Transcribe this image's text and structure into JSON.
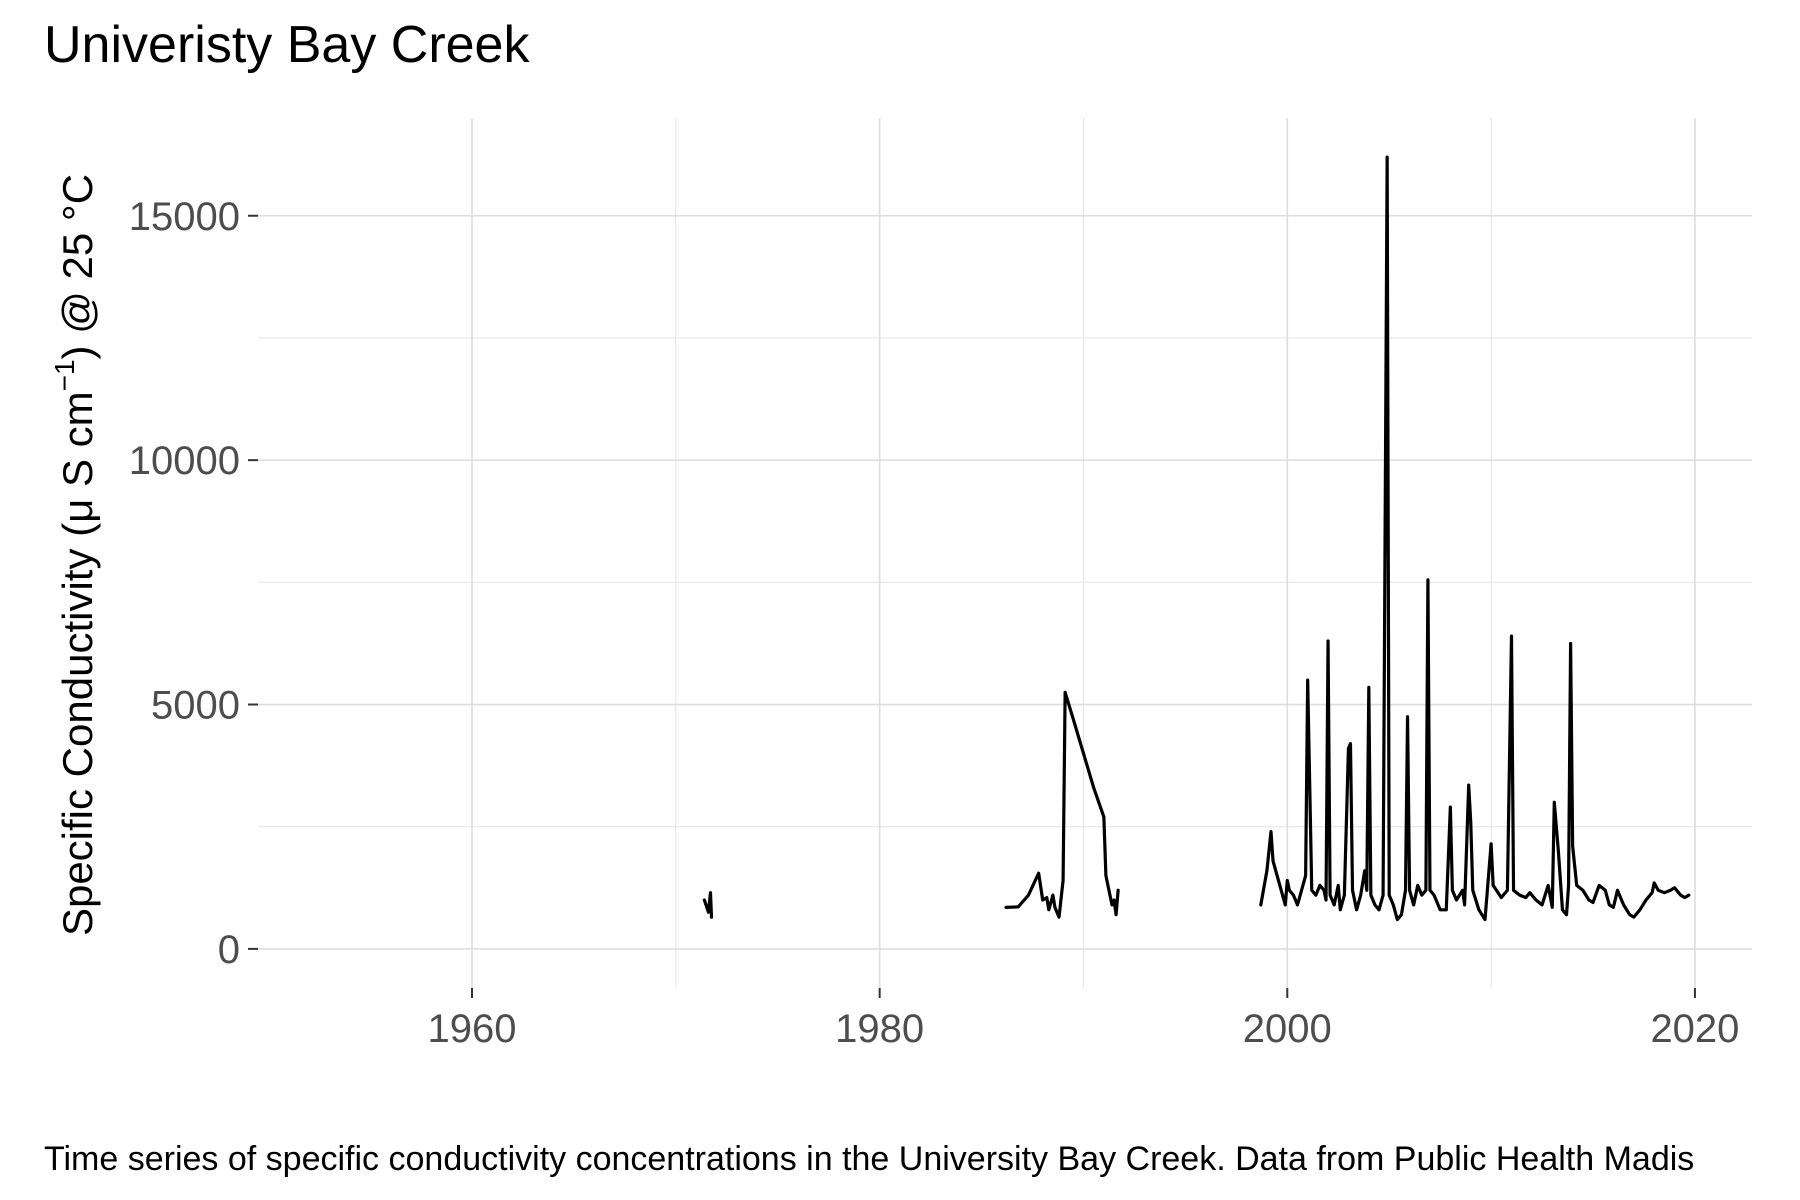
{
  "chart_data": {
    "type": "line",
    "title": "Univeristy Bay Creek",
    "ylabel_main": "Specific Conductivity (μ S cm",
    "ylabel_sup": "−1",
    "ylabel_end": ") @ 25 °C",
    "caption": "Time series of specific conductivity concentrations in the University Bay Creek. Data from Public Health Madis",
    "xlim": [
      1949.5,
      2022.8
    ],
    "ylim": [
      -800,
      17000
    ],
    "x_ticks": [
      1960,
      1980,
      2000,
      2020
    ],
    "x_tick_labels": [
      "1960",
      "1980",
      "2000",
      "2020"
    ],
    "x_minor": [
      1970,
      1990,
      2010
    ],
    "y_ticks": [
      0,
      5000,
      10000,
      15000
    ],
    "y_tick_labels": [
      "0",
      "5000",
      "10000",
      "15000"
    ],
    "y_minor": [
      2500,
      7500,
      12500
    ],
    "grid": true,
    "series": [
      {
        "segments": [
          [
            [
              1971.4,
              1000
            ],
            [
              1971.6,
              750
            ],
            [
              1971.7,
              1150
            ],
            [
              1971.75,
              650
            ]
          ],
          [
            [
              1986.2,
              850
            ],
            [
              1986.8,
              860
            ],
            [
              1987.3,
              1100
            ],
            [
              1987.8,
              1550
            ],
            [
              1988.0,
              1000
            ],
            [
              1988.2,
              1050
            ],
            [
              1988.3,
              800
            ],
            [
              1988.5,
              1100
            ],
            [
              1988.6,
              850
            ],
            [
              1988.8,
              650
            ],
            [
              1989.0,
              1400
            ],
            [
              1989.1,
              5250
            ],
            [
              1989.5,
              4700
            ],
            [
              1990.0,
              4000
            ],
            [
              1990.5,
              3300
            ],
            [
              1991.0,
              2700
            ],
            [
              1991.1,
              1500
            ],
            [
              1991.4,
              900
            ],
            [
              1991.5,
              1000
            ],
            [
              1991.6,
              700
            ],
            [
              1991.7,
              1200
            ]
          ],
          [
            [
              1998.7,
              900
            ],
            [
              1999.0,
              1600
            ],
            [
              1999.2,
              2400
            ],
            [
              1999.3,
              1800
            ],
            [
              1999.5,
              1500
            ],
            [
              1999.7,
              1200
            ],
            [
              1999.9,
              900
            ],
            [
              2000.0,
              1400
            ],
            [
              2000.1,
              1200
            ],
            [
              2000.3,
              1100
            ],
            [
              2000.5,
              900
            ],
            [
              2000.7,
              1200
            ],
            [
              2000.9,
              1500
            ],
            [
              2001.0,
              5500
            ],
            [
              2001.2,
              1200
            ],
            [
              2001.4,
              1100
            ],
            [
              2001.6,
              1300
            ],
            [
              2001.8,
              1200
            ],
            [
              2001.9,
              1000
            ],
            [
              2002.0,
              6300
            ],
            [
              2002.1,
              1100
            ],
            [
              2002.3,
              900
            ],
            [
              2002.5,
              1300
            ],
            [
              2002.6,
              800
            ],
            [
              2002.8,
              1100
            ],
            [
              2003.0,
              4100
            ],
            [
              2003.1,
              4200
            ],
            [
              2003.2,
              1200
            ],
            [
              2003.4,
              800
            ],
            [
              2003.6,
              1100
            ],
            [
              2003.8,
              1600
            ],
            [
              2003.9,
              1200
            ],
            [
              2004.0,
              5350
            ],
            [
              2004.1,
              1100
            ],
            [
              2004.3,
              900
            ],
            [
              2004.5,
              800
            ],
            [
              2004.7,
              1100
            ],
            [
              2004.9,
              16200
            ],
            [
              2005.0,
              1100
            ],
            [
              2005.2,
              900
            ],
            [
              2005.4,
              600
            ],
            [
              2005.6,
              700
            ],
            [
              2005.8,
              1200
            ],
            [
              2005.9,
              4750
            ],
            [
              2006.0,
              1200
            ],
            [
              2006.2,
              900
            ],
            [
              2006.4,
              1300
            ],
            [
              2006.6,
              1100
            ],
            [
              2006.8,
              1200
            ],
            [
              2006.9,
              7550
            ],
            [
              2007.0,
              1200
            ],
            [
              2007.2,
              1100
            ],
            [
              2007.5,
              800
            ],
            [
              2007.8,
              800
            ],
            [
              2008.0,
              2900
            ],
            [
              2008.1,
              1200
            ],
            [
              2008.3,
              1000
            ],
            [
              2008.6,
              1200
            ],
            [
              2008.7,
              900
            ],
            [
              2008.9,
              3350
            ],
            [
              2009.0,
              2600
            ],
            [
              2009.1,
              1200
            ],
            [
              2009.4,
              800
            ],
            [
              2009.7,
              600
            ],
            [
              2010.0,
              2150
            ],
            [
              2010.1,
              1300
            ],
            [
              2010.5,
              1050
            ],
            [
              2010.8,
              1200
            ],
            [
              2011.0,
              6400
            ],
            [
              2011.1,
              1200
            ],
            [
              2011.4,
              1100
            ],
            [
              2011.7,
              1050
            ],
            [
              2011.9,
              1150
            ],
            [
              2012.2,
              1000
            ],
            [
              2012.5,
              900
            ],
            [
              2012.8,
              1300
            ],
            [
              2013.0,
              850
            ],
            [
              2013.1,
              3000
            ],
            [
              2013.3,
              2000
            ],
            [
              2013.5,
              800
            ],
            [
              2013.7,
              700
            ],
            [
              2013.8,
              1300
            ],
            [
              2013.9,
              6250
            ],
            [
              2014.0,
              2100
            ],
            [
              2014.2,
              1300
            ],
            [
              2014.5,
              1200
            ],
            [
              2014.8,
              1000
            ],
            [
              2015.0,
              950
            ],
            [
              2015.3,
              1300
            ],
            [
              2015.6,
              1200
            ],
            [
              2015.8,
              900
            ],
            [
              2016.0,
              850
            ],
            [
              2016.2,
              1200
            ],
            [
              2016.5,
              900
            ],
            [
              2016.8,
              700
            ],
            [
              2017.0,
              650
            ],
            [
              2017.3,
              800
            ],
            [
              2017.6,
              1000
            ],
            [
              2017.9,
              1150
            ],
            [
              2018.0,
              1350
            ],
            [
              2018.2,
              1200
            ],
            [
              2018.5,
              1150
            ],
            [
              2018.8,
              1200
            ],
            [
              2019.0,
              1250
            ],
            [
              2019.3,
              1100
            ],
            [
              2019.5,
              1050
            ],
            [
              2019.7,
              1100
            ]
          ]
        ]
      }
    ]
  }
}
